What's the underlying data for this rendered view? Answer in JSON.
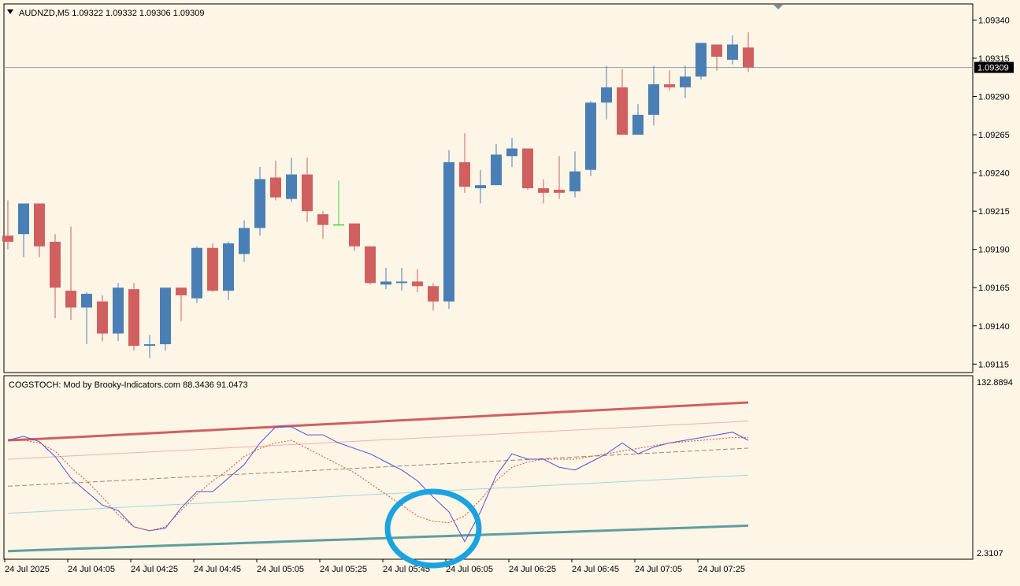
{
  "main_chart": {
    "symbol_header": "AUDNZD,M5  1.09322 1.09332 1.09306 1.09309",
    "current_price_label": "1.09309",
    "current_price": 1.09309,
    "price_axis_ticks": [
      "1.09340",
      "1.09315",
      "1.09290",
      "1.09265",
      "1.09240",
      "1.09215",
      "1.09190",
      "1.09165",
      "1.09140",
      "1.09115"
    ],
    "colors": {
      "bull": "#4a7fb5",
      "bear": "#d06060",
      "doji": "#33dd33",
      "background": "#fdf5e6",
      "price_line": "#8a9aa8"
    }
  },
  "indicator": {
    "header": "COGSTOCH: Mod by Brooky-Indicators.com 88.3436 91.0473",
    "axis_max_label": "132.8894",
    "axis_min_label": "2.3107",
    "colors": {
      "upper_band": "#d06060",
      "lower_band": "#5f9ea0",
      "stoch": "#5050e0",
      "signal": "#e05030",
      "mid_line": "#998877"
    }
  },
  "time_axis": {
    "labels": [
      "24 Jul 2025",
      "24 Jul 04:05",
      "24 Jul 04:25",
      "24 Jul 04:45",
      "24 Jul 05:05",
      "24 Jul 05:25",
      "24 Jul 05:45",
      "24 Jul 06:05",
      "24 Jul 06:25",
      "24 Jul 06:45",
      "24 Jul 07:05",
      "24 Jul 07:25"
    ]
  },
  "annotation": {
    "shape": "circle",
    "color": "#1aa3e0"
  },
  "chart_data": [
    {
      "type": "candlestick",
      "title": "AUDNZD,M5",
      "ylim": [
        1.0911,
        1.0935
      ],
      "candles": [
        {
          "o": 1.09199,
          "h": 1.09222,
          "l": 1.0919,
          "c": 1.09195
        },
        {
          "o": 1.092,
          "h": 1.0922,
          "l": 1.09185,
          "c": 1.0922
        },
        {
          "o": 1.0922,
          "h": 1.0922,
          "l": 1.09185,
          "c": 1.09192
        },
        {
          "o": 1.09195,
          "h": 1.092,
          "l": 1.09145,
          "c": 1.09165
        },
        {
          "o": 1.09163,
          "h": 1.09205,
          "l": 1.09144,
          "c": 1.09152
        },
        {
          "o": 1.09152,
          "h": 1.09162,
          "l": 1.09128,
          "c": 1.09161
        },
        {
          "o": 1.09156,
          "h": 1.0916,
          "l": 1.0913,
          "c": 1.09135
        },
        {
          "o": 1.09135,
          "h": 1.09168,
          "l": 1.0913,
          "c": 1.09165
        },
        {
          "o": 1.09164,
          "h": 1.09168,
          "l": 1.09124,
          "c": 1.09127
        },
        {
          "o": 1.09127,
          "h": 1.09134,
          "l": 1.09119,
          "c": 1.09128
        },
        {
          "o": 1.09128,
          "h": 1.09165,
          "l": 1.09124,
          "c": 1.09165
        },
        {
          "o": 1.09165,
          "h": 1.09165,
          "l": 1.09143,
          "c": 1.0916
        },
        {
          "o": 1.09158,
          "h": 1.09192,
          "l": 1.09155,
          "c": 1.09191
        },
        {
          "o": 1.09191,
          "h": 1.09194,
          "l": 1.09162,
          "c": 1.09163
        },
        {
          "o": 1.09163,
          "h": 1.09195,
          "l": 1.09157,
          "c": 1.09194
        },
        {
          "o": 1.09187,
          "h": 1.09209,
          "l": 1.09182,
          "c": 1.09204
        },
        {
          "o": 1.09204,
          "h": 1.09244,
          "l": 1.09199,
          "c": 1.09236
        },
        {
          "o": 1.09237,
          "h": 1.09248,
          "l": 1.09222,
          "c": 1.09224
        },
        {
          "o": 1.09223,
          "h": 1.0925,
          "l": 1.09221,
          "c": 1.09239
        },
        {
          "o": 1.09239,
          "h": 1.0925,
          "l": 1.09208,
          "c": 1.09215
        },
        {
          "o": 1.09213,
          "h": 1.09215,
          "l": 1.09197,
          "c": 1.09206
        },
        {
          "o": 1.09206,
          "h": 1.09235,
          "l": 1.09206,
          "c": 1.09206
        },
        {
          "o": 1.09207,
          "h": 1.09207,
          "l": 1.09189,
          "c": 1.09192
        },
        {
          "o": 1.09192,
          "h": 1.09192,
          "l": 1.09167,
          "c": 1.09168
        },
        {
          "o": 1.09167,
          "h": 1.09178,
          "l": 1.09164,
          "c": 1.09169
        },
        {
          "o": 1.09168,
          "h": 1.09178,
          "l": 1.09163,
          "c": 1.09169
        },
        {
          "o": 1.09169,
          "h": 1.09177,
          "l": 1.09162,
          "c": 1.09166
        },
        {
          "o": 1.09166,
          "h": 1.09168,
          "l": 1.0915,
          "c": 1.09156
        },
        {
          "o": 1.09156,
          "h": 1.09255,
          "l": 1.09151,
          "c": 1.09247
        },
        {
          "o": 1.09247,
          "h": 1.09266,
          "l": 1.09227,
          "c": 1.09231
        },
        {
          "o": 1.0923,
          "h": 1.09242,
          "l": 1.0922,
          "c": 1.09232
        },
        {
          "o": 1.09232,
          "h": 1.09259,
          "l": 1.09232,
          "c": 1.09252
        },
        {
          "o": 1.09251,
          "h": 1.09263,
          "l": 1.09244,
          "c": 1.09256
        },
        {
          "o": 1.09256,
          "h": 1.09256,
          "l": 1.09229,
          "c": 1.0923
        },
        {
          "o": 1.0923,
          "h": 1.09236,
          "l": 1.0922,
          "c": 1.09227
        },
        {
          "o": 1.09229,
          "h": 1.09251,
          "l": 1.09223,
          "c": 1.09227
        },
        {
          "o": 1.09228,
          "h": 1.09254,
          "l": 1.09224,
          "c": 1.09241
        },
        {
          "o": 1.09242,
          "h": 1.09287,
          "l": 1.09238,
          "c": 1.09286
        },
        {
          "o": 1.09286,
          "h": 1.0931,
          "l": 1.09275,
          "c": 1.09296
        },
        {
          "o": 1.09296,
          "h": 1.09308,
          "l": 1.09265,
          "c": 1.09265
        },
        {
          "o": 1.09265,
          "h": 1.09285,
          "l": 1.09265,
          "c": 1.09278
        },
        {
          "o": 1.09278,
          "h": 1.0931,
          "l": 1.09271,
          "c": 1.09298
        },
        {
          "o": 1.09298,
          "h": 1.09307,
          "l": 1.09294,
          "c": 1.09296
        },
        {
          "o": 1.09296,
          "h": 1.0931,
          "l": 1.09289,
          "c": 1.09303
        },
        {
          "o": 1.09303,
          "h": 1.09325,
          "l": 1.09301,
          "c": 1.09325
        },
        {
          "o": 1.09324,
          "h": 1.09324,
          "l": 1.09307,
          "c": 1.09316
        },
        {
          "o": 1.09314,
          "h": 1.0933,
          "l": 1.09311,
          "c": 1.09324
        },
        {
          "o": 1.09322,
          "h": 1.09332,
          "l": 1.09306,
          "c": 1.09309
        }
      ]
    },
    {
      "type": "line",
      "title": "COGSTOCH: Mod by Brooky-Indicators.com",
      "ylim": [
        2.3107,
        132.8894
      ],
      "series": [
        {
          "values": [
            88,
            88.5,
            89,
            89.6,
            90.2,
            90.8,
            91.4,
            92.0,
            92.6,
            93.2,
            93.8,
            94.4,
            95.0,
            95.6,
            96.2,
            96.8,
            97.4,
            98.0,
            98.6,
            99.2,
            99.8,
            100.4,
            101.0,
            101.6,
            102.2,
            102.8,
            103.4,
            104.0,
            104.6,
            105.2,
            105.8,
            106.4,
            107.0,
            107.6,
            108.2,
            108.8,
            109.4,
            110.0,
            110.6,
            111.2,
            111.8,
            112.4,
            113.0,
            113.6,
            114.2,
            114.8,
            115.4,
            116.0
          ]
        },
        {
          "values": [
            74,
            74.6,
            75.2,
            75.8,
            76.4,
            77.0,
            77.6,
            78.2,
            78.8,
            79.4,
            80.0,
            80.6,
            81.2,
            81.8,
            82.4,
            83.0,
            83.6,
            84.2,
            84.8,
            85.4,
            86.0,
            86.6,
            87.2,
            87.8,
            88.4,
            89.0,
            89.6,
            90.2,
            90.8,
            91.4,
            92.0,
            92.6,
            93.2,
            93.8,
            94.4,
            95.0,
            95.6,
            96.2,
            96.8,
            97.4,
            98.0,
            98.6,
            99.2,
            99.8,
            100.4,
            101.0,
            101.6,
            102.2
          ]
        },
        {
          "values": [
            54,
            54.6,
            55.2,
            55.8,
            56.4,
            57.0,
            57.6,
            58.2,
            58.8,
            59.4,
            60.0,
            60.6,
            61.2,
            61.8,
            62.4,
            63.0,
            63.6,
            64.2,
            64.8,
            65.4,
            66.0,
            66.6,
            67.2,
            67.8,
            68.4,
            69.0,
            69.6,
            70.2,
            70.8,
            71.4,
            72.0,
            72.6,
            73.2,
            73.8,
            74.4,
            75.0,
            75.6,
            76.2,
            76.8,
            77.4,
            78.0,
            78.6,
            79.2,
            79.8,
            80.4,
            81.0,
            81.6,
            82.2
          ]
        },
        {
          "values": [
            34,
            34.6,
            35.2,
            35.8,
            36.4,
            37.0,
            37.6,
            38.2,
            38.8,
            39.4,
            40.0,
            40.6,
            41.2,
            41.8,
            42.4,
            43.0,
            43.6,
            44.2,
            44.8,
            45.4,
            46.0,
            46.6,
            47.2,
            47.8,
            48.4,
            49.0,
            49.6,
            50.2,
            50.8,
            51.4,
            52.0,
            52.6,
            53.2,
            53.8,
            54.4,
            55.0,
            55.6,
            56.2,
            56.8,
            57.4,
            58.0,
            58.6,
            59.2,
            59.8,
            60.4,
            61.0,
            61.6,
            62.2
          ]
        },
        {
          "values": [
            6,
            6.4,
            6.8,
            7.2,
            7.6,
            8.0,
            8.4,
            8.8,
            9.2,
            9.6,
            10.0,
            10.4,
            10.8,
            11.2,
            11.6,
            12.0,
            12.4,
            12.8,
            13.2,
            13.6,
            14.0,
            14.4,
            14.8,
            15.2,
            15.6,
            16.0,
            16.4,
            16.8,
            17.2,
            17.6,
            18.0,
            18.4,
            18.8,
            19.2,
            19.6,
            20.0,
            20.4,
            20.8,
            21.2,
            21.6,
            22.0,
            22.4,
            22.8,
            23.2,
            23.6,
            24.0,
            24.4,
            24.8
          ]
        },
        {
          "values": [
            88,
            91,
            87,
            76,
            60,
            50,
            40,
            36,
            24,
            21,
            23,
            38,
            50,
            50,
            60,
            70,
            86,
            98,
            98,
            92,
            92,
            86,
            82,
            78,
            72,
            66,
            58,
            46,
            35,
            13,
            35,
            62,
            78,
            74,
            74,
            68,
            66,
            72,
            78,
            86,
            78,
            83,
            86,
            88,
            90,
            92,
            94,
            88
          ]
        },
        {
          "values": [
            88,
            88,
            86,
            80,
            68,
            58,
            46,
            33,
            24,
            21,
            24,
            36,
            48,
            58,
            66,
            76,
            82,
            86,
            88,
            82,
            76,
            70,
            64,
            56,
            48,
            40,
            32,
            28,
            27,
            32,
            44,
            58,
            68,
            72,
            74,
            74,
            74,
            76,
            78,
            80,
            82,
            84,
            86,
            87,
            88,
            89,
            90,
            90
          ]
        }
      ]
    }
  ]
}
